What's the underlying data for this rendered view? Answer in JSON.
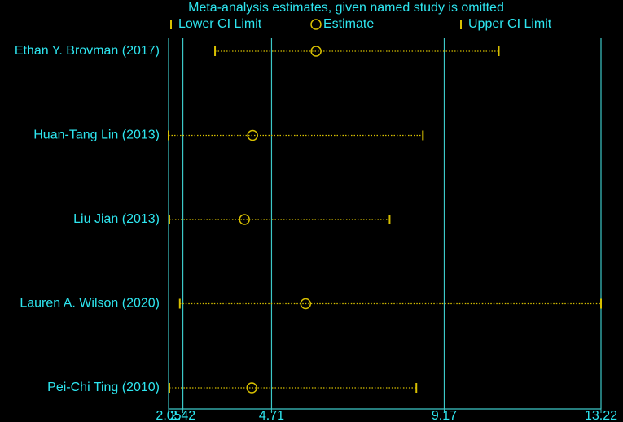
{
  "chart_data": {
    "type": "forest",
    "title": "Meta-analysis estimates, given named study is omitted",
    "categories": [
      "Ethan Y. Brovman (2017)",
      "Huan-Tang Lin (2013)",
      "Liu Jian (2013)",
      "Lauren A. Wilson (2020)",
      "Pei-Chi Ting (2010)"
    ],
    "series": [
      {
        "name": "Lower CI Limit",
        "color": "#d8c000",
        "values": [
          3.25,
          2.05,
          2.07,
          2.34,
          2.07
        ]
      },
      {
        "name": "Estimate",
        "color": "#d8c000",
        "values": [
          5.86,
          4.22,
          4.01,
          5.59,
          4.2
        ]
      },
      {
        "name": "Upper CI Limit",
        "color": "#d8c000",
        "values": [
          10.58,
          8.62,
          7.76,
          13.22,
          8.45
        ]
      }
    ],
    "xlim": [
      2.05,
      13.22
    ],
    "xticks": [
      2.05,
      2.42,
      4.71,
      9.17,
      13.22
    ],
    "grid": true
  }
}
